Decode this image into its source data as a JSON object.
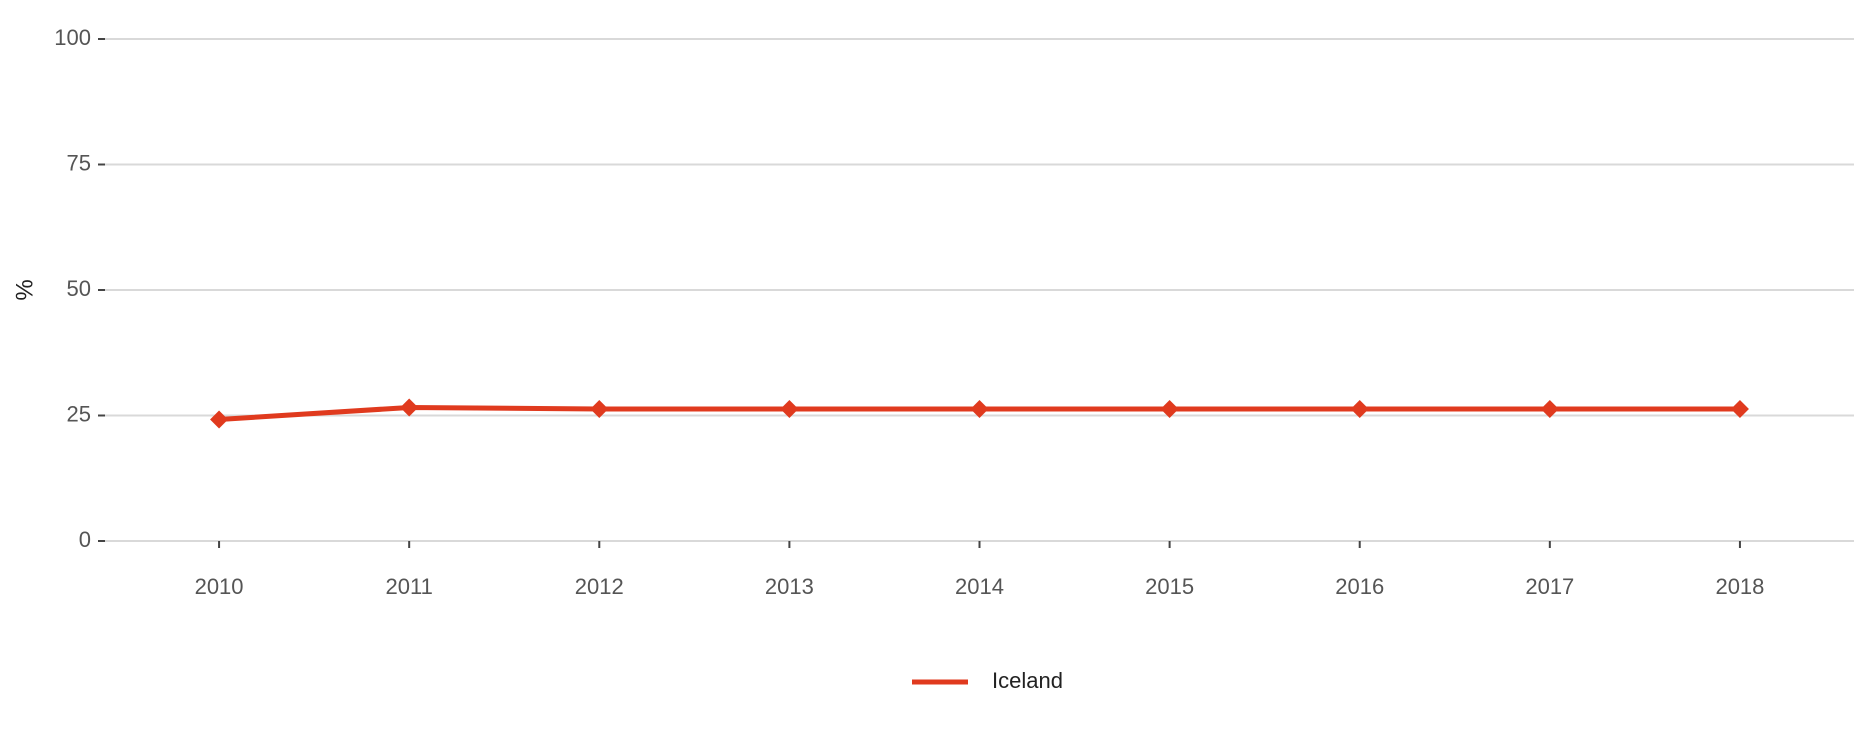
{
  "chart_data": {
    "type": "line",
    "y_label": "%",
    "x": [
      2010,
      2011,
      2012,
      2013,
      2014,
      2015,
      2016,
      2017,
      2018
    ],
    "series": [
      {
        "name": "Iceland",
        "color": "#e03a1e",
        "values": [
          24.2,
          26.6,
          26.3,
          26.3,
          26.3,
          26.3,
          26.3,
          26.3,
          26.3
        ]
      }
    ],
    "xlim": [
      2009.4,
      2018.6
    ],
    "xticks": [
      2010,
      2011,
      2012,
      2013,
      2014,
      2015,
      2016,
      2017,
      2018
    ],
    "ylim": [
      0,
      100
    ],
    "yticks": [
      0,
      25,
      50,
      75,
      100
    ],
    "grid": true,
    "legend": "bottom"
  }
}
